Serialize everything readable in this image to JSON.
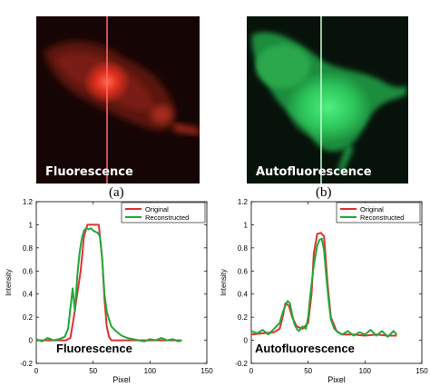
{
  "images": [
    {
      "id": "a",
      "letter": "(a)",
      "label": "Fluorescence"
    },
    {
      "id": "b",
      "letter": "(b)",
      "label": "Autofluorescence"
    }
  ],
  "colors": {
    "original": "#e03030",
    "reconstructed": "#22a83a",
    "fluor_glow": "#ff4030",
    "fluor_dark": "#3a0c08",
    "auto_glow": "#40e070",
    "auto_dark": "#0a3a16"
  },
  "chart_data": [
    {
      "type": "line",
      "xlabel": "Pixel",
      "ylabel": "Intensity",
      "xlim": [
        0,
        150
      ],
      "ylim": [
        -0.2,
        1.2
      ],
      "xticks": [
        "0",
        "50",
        "100",
        "150"
      ],
      "yticks": [
        "-0.2",
        "0",
        "0.2",
        "0.4",
        "0.6",
        "0.8",
        "1",
        "1.2"
      ],
      "legend_position": "top-right",
      "annotation": "Fluorescence",
      "series": [
        {
          "name": "Original",
          "color": "#e03030",
          "x": [
            0,
            26,
            30,
            33,
            36,
            39,
            42,
            45,
            55,
            58,
            60,
            62,
            64,
            66,
            70,
            80,
            100,
            128
          ],
          "y": [
            0,
            0,
            0.02,
            0.2,
            0.4,
            0.6,
            0.9,
            1.0,
            1.0,
            0.7,
            0.35,
            0.12,
            0.03,
            0,
            0,
            0,
            0,
            0
          ]
        },
        {
          "name": "Reconstructed",
          "color": "#22a83a",
          "x": [
            0,
            5,
            10,
            15,
            20,
            25,
            28,
            30,
            32,
            34,
            36,
            38,
            40,
            42,
            44,
            46,
            48,
            50,
            52,
            54,
            56,
            58,
            60,
            62,
            64,
            66,
            68,
            70,
            75,
            80,
            85,
            90,
            95,
            100,
            105,
            110,
            115,
            120,
            125,
            128
          ],
          "y": [
            0.01,
            -0.01,
            0.02,
            0,
            0.01,
            0.03,
            0.1,
            0.28,
            0.45,
            0.25,
            0.55,
            0.75,
            0.88,
            0.95,
            0.97,
            0.96,
            0.97,
            0.95,
            0.94,
            0.93,
            0.9,
            0.7,
            0.4,
            0.25,
            0.18,
            0.12,
            0.1,
            0.08,
            0.04,
            0.02,
            0.01,
            0,
            -0.01,
            0.01,
            0,
            0.02,
            0,
            0.01,
            -0.01,
            0
          ]
        }
      ]
    },
    {
      "type": "line",
      "xlabel": "Pixel",
      "ylabel": "Intensity",
      "xlim": [
        0,
        150
      ],
      "ylim": [
        -0.2,
        1.2
      ],
      "xticks": [
        "0",
        "50",
        "100",
        "150"
      ],
      "yticks": [
        "-0.2",
        "0",
        "0.2",
        "0.4",
        "0.6",
        "0.8",
        "1",
        "1.2"
      ],
      "legend_position": "top-right",
      "annotation": "Autofluorescence",
      "series": [
        {
          "name": "Original",
          "color": "#e03030",
          "x": [
            0,
            10,
            20,
            25,
            28,
            30,
            33,
            36,
            40,
            45,
            50,
            53,
            55,
            58,
            61,
            64,
            67,
            70,
            75,
            80,
            90,
            100,
            110,
            120,
            128
          ],
          "y": [
            0.05,
            0.06,
            0.07,
            0.1,
            0.22,
            0.32,
            0.3,
            0.2,
            0.12,
            0.1,
            0.15,
            0.4,
            0.75,
            0.92,
            0.93,
            0.9,
            0.5,
            0.2,
            0.08,
            0.05,
            0.05,
            0.04,
            0.05,
            0.04,
            0.04
          ]
        },
        {
          "name": "Reconstructed",
          "color": "#22a83a",
          "x": [
            0,
            5,
            10,
            15,
            20,
            25,
            28,
            30,
            32,
            34,
            36,
            38,
            40,
            42,
            45,
            48,
            50,
            52,
            55,
            58,
            60,
            62,
            64,
            66,
            68,
            70,
            73,
            76,
            80,
            85,
            90,
            95,
            100,
            105,
            110,
            115,
            120,
            125,
            128
          ],
          "y": [
            0.08,
            0.06,
            0.09,
            0.05,
            0.1,
            0.15,
            0.25,
            0.3,
            0.34,
            0.32,
            0.22,
            0.14,
            0.1,
            0.08,
            0.12,
            0.1,
            0.2,
            0.4,
            0.65,
            0.82,
            0.87,
            0.88,
            0.78,
            0.55,
            0.35,
            0.18,
            0.1,
            0.07,
            0.05,
            0.08,
            0.04,
            0.07,
            0.05,
            0.09,
            0.04,
            0.08,
            0.03,
            0.08,
            0.05
          ]
        }
      ]
    }
  ]
}
